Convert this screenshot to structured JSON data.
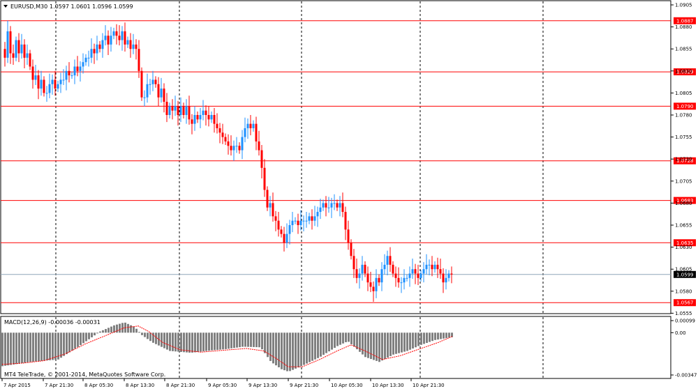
{
  "header": {
    "symbol": "EURUSD,M30",
    "ohlc": "1.0597 1.0601 1.0596 1.0599"
  },
  "macd_header": "MACD(12,26,9) -0.00036 -0.00031",
  "copyright": "MT4 TeleTrade, © 2001-2014, MetaQuotes Software Corp.",
  "colors": {
    "up": "#1e90ff",
    "down": "#ff0000",
    "level": "#ff0000",
    "bid": "#8fa6b8",
    "macd_hist": "#808080",
    "signal": "#ff0000"
  },
  "chart_data": [
    {
      "type": "candlestick",
      "title": "EURUSD,M30",
      "yticks": [
        "1.0905",
        "1.0880",
        "1.0855",
        "1.0830",
        "1.0805",
        "1.0780",
        "1.0755",
        "1.0730",
        "1.0705",
        "1.0680",
        "1.0655",
        "1.0630",
        "1.0605",
        "1.0580",
        "1.0555"
      ],
      "xticks": [
        "7 Apr 2015",
        "7 Apr 21:30",
        "8 Apr 05:30",
        "8 Apr 13:30",
        "8 Apr 21:30",
        "9 Apr 05:30",
        "9 Apr 13:30",
        "9 Apr 21:30",
        "10 Apr 05:30",
        "10 Apr 13:30",
        "10 Apr 21:30"
      ],
      "ylim": [
        1.0544,
        1.0911
      ],
      "grid": "vertical dashed",
      "levels": [
        1.0887,
        1.0829,
        1.079,
        1.0728,
        1.0683,
        1.0635,
        1.0567
      ],
      "level_labels": [
        "1.0887",
        "1.0829",
        "1.0790",
        "1.0728",
        "1.0683",
        "1.0635",
        "1.0567"
      ],
      "current_price": 1.0599,
      "current_price_label": "1.0599",
      "close_path": [
        [
          0,
          1.0855
        ],
        [
          4,
          1.0845
        ],
        [
          8,
          1.0875
        ],
        [
          12,
          1.085
        ],
        [
          16,
          1.0845
        ],
        [
          20,
          1.0865
        ],
        [
          24,
          1.085
        ],
        [
          28,
          1.086
        ],
        [
          32,
          1.0845
        ],
        [
          36,
          1.085
        ],
        [
          40,
          1.0835
        ],
        [
          44,
          1.082
        ],
        [
          48,
          1.0825
        ],
        [
          52,
          1.081
        ],
        [
          56,
          1.082
        ],
        [
          60,
          1.0805
        ],
        [
          64,
          1.0805
        ],
        [
          68,
          1.0815
        ],
        [
          72,
          1.082
        ],
        [
          76,
          1.081
        ],
        [
          80,
          1.0815
        ],
        [
          84,
          1.082
        ],
        [
          88,
          1.082
        ],
        [
          92,
          1.083
        ],
        [
          96,
          1.0825
        ],
        [
          100,
          1.0825
        ],
        [
          104,
          1.0835
        ],
        [
          108,
          1.083
        ],
        [
          112,
          1.0835
        ],
        [
          116,
          1.084
        ],
        [
          120,
          1.0845
        ],
        [
          124,
          1.0845
        ],
        [
          128,
          1.0855
        ],
        [
          132,
          1.085
        ],
        [
          136,
          1.086
        ],
        [
          140,
          1.0855
        ],
        [
          144,
          1.0865
        ],
        [
          148,
          1.087
        ],
        [
          152,
          1.086
        ],
        [
          156,
          1.087
        ],
        [
          160,
          1.0875
        ],
        [
          164,
          1.087
        ],
        [
          168,
          1.0865
        ],
        [
          172,
          1.0875
        ],
        [
          176,
          1.086
        ],
        [
          180,
          1.0865
        ],
        [
          184,
          1.0855
        ],
        [
          188,
          1.086
        ],
        [
          192,
          1.0855
        ],
        [
          196,
          1.083
        ],
        [
          200,
          1.08
        ],
        [
          204,
          1.08
        ],
        [
          208,
          1.0815
        ],
        [
          212,
          1.0815
        ],
        [
          216,
          1.082
        ],
        [
          220,
          1.0815
        ],
        [
          224,
          1.08
        ],
        [
          228,
          1.081
        ],
        [
          232,
          1.0795
        ],
        [
          236,
          1.078
        ],
        [
          240,
          1.079
        ],
        [
          244,
          1.0785
        ],
        [
          248,
          1.079
        ],
        [
          252,
          1.078
        ],
        [
          256,
          1.079
        ],
        [
          260,
          1.078
        ],
        [
          264,
          1.079
        ],
        [
          268,
          1.0775
        ],
        [
          272,
          1.077
        ],
        [
          276,
          1.078
        ],
        [
          280,
          1.0775
        ],
        [
          284,
          1.078
        ],
        [
          288,
          1.0785
        ],
        [
          292,
          1.078
        ],
        [
          296,
          1.0775
        ],
        [
          300,
          1.078
        ],
        [
          304,
          1.077
        ],
        [
          308,
          1.0765
        ],
        [
          312,
          1.076
        ],
        [
          316,
          1.0755
        ],
        [
          320,
          1.075
        ],
        [
          324,
          1.0745
        ],
        [
          328,
          1.074
        ],
        [
          332,
          1.0745
        ],
        [
          336,
          1.0745
        ],
        [
          340,
          1.074
        ],
        [
          344,
          1.0755
        ],
        [
          348,
          1.0765
        ],
        [
          352,
          1.077
        ],
        [
          356,
          1.0765
        ],
        [
          360,
          1.077
        ],
        [
          364,
          1.075
        ],
        [
          368,
          1.074
        ],
        [
          372,
          1.072
        ],
        [
          376,
          1.0695
        ],
        [
          380,
          1.0675
        ],
        [
          384,
          1.068
        ],
        [
          388,
          1.0665
        ],
        [
          392,
          1.066
        ],
        [
          396,
          1.065
        ],
        [
          400,
          1.0645
        ],
        [
          404,
          1.0635
        ],
        [
          408,
          1.0645
        ],
        [
          412,
          1.0655
        ],
        [
          416,
          1.066
        ],
        [
          420,
          1.066
        ],
        [
          424,
          1.0655
        ],
        [
          428,
          1.066
        ],
        [
          432,
          1.066
        ],
        [
          436,
          1.066
        ],
        [
          440,
          1.0665
        ],
        [
          444,
          1.066
        ],
        [
          448,
          1.0665
        ],
        [
          452,
          1.067
        ],
        [
          456,
          1.0675
        ],
        [
          460,
          1.068
        ],
        [
          464,
          1.0675
        ],
        [
          468,
          1.0675
        ],
        [
          472,
          1.068
        ],
        [
          476,
          1.068
        ],
        [
          480,
          1.0675
        ],
        [
          484,
          1.068
        ],
        [
          488,
          1.067
        ],
        [
          492,
          1.065
        ],
        [
          496,
          1.0635
        ],
        [
          500,
          1.062
        ],
        [
          504,
          1.0605
        ],
        [
          508,
          1.0595
        ],
        [
          512,
          1.06
        ],
        [
          516,
          1.061
        ],
        [
          520,
          1.06
        ],
        [
          524,
          1.059
        ],
        [
          528,
          1.0585
        ],
        [
          532,
          1.058
        ],
        [
          536,
          1.0595
        ],
        [
          540,
          1.059
        ],
        [
          544,
          1.0605
        ],
        [
          548,
          1.061
        ],
        [
          552,
          1.062
        ],
        [
          556,
          1.061
        ],
        [
          560,
          1.06
        ],
        [
          564,
          1.0595
        ],
        [
          568,
          1.059
        ],
        [
          572,
          1.059
        ],
        [
          576,
          1.0595
        ],
        [
          580,
          1.0595
        ],
        [
          584,
          1.06
        ],
        [
          588,
          1.0605
        ],
        [
          592,
          1.06
        ],
        [
          596,
          1.0595
        ],
        [
          600,
          1.06
        ],
        [
          604,
          1.0605
        ],
        [
          608,
          1.061
        ],
        [
          612,
          1.061
        ],
        [
          616,
          1.0605
        ],
        [
          620,
          1.061
        ],
        [
          624,
          1.0605
        ],
        [
          628,
          1.06
        ],
        [
          632,
          1.059
        ],
        [
          636,
          1.0595
        ],
        [
          640,
          1.06
        ],
        [
          644,
          1.0599
        ]
      ]
    },
    {
      "type": "bar",
      "title": "MACD(12,26,9) -0.00036 -0.00031",
      "yticks": [
        "0.00099",
        "0.00",
        "-0.00347"
      ],
      "ylim": [
        -0.00347,
        0.00099
      ],
      "histogram_path": [
        [
          0,
          -0.00275
        ],
        [
          40,
          -0.0024
        ],
        [
          80,
          -0.0022
        ],
        [
          110,
          -0.0011
        ],
        [
          140,
          0.0001
        ],
        [
          160,
          0.0006
        ],
        [
          175,
          0.00085
        ],
        [
          190,
          0.00045
        ],
        [
          200,
          -0.0002
        ],
        [
          215,
          -0.0008
        ],
        [
          240,
          -0.0015
        ],
        [
          270,
          -0.00165
        ],
        [
          300,
          -0.00145
        ],
        [
          320,
          -0.00135
        ],
        [
          345,
          -0.00115
        ],
        [
          370,
          -0.0012
        ],
        [
          385,
          -0.0024
        ],
        [
          400,
          -0.003
        ],
        [
          410,
          -0.0032
        ],
        [
          430,
          -0.0027
        ],
        [
          455,
          -0.002
        ],
        [
          480,
          -0.0011
        ],
        [
          495,
          -0.0007
        ],
        [
          505,
          -0.0012
        ],
        [
          520,
          -0.002
        ],
        [
          540,
          -0.0024
        ],
        [
          560,
          -0.0018
        ],
        [
          580,
          -0.0015
        ],
        [
          600,
          -0.001
        ],
        [
          620,
          -0.0006
        ],
        [
          645,
          -0.00036
        ]
      ],
      "signal_path": [
        [
          0,
          -0.0026
        ],
        [
          30,
          -0.0025
        ],
        [
          60,
          -0.0023
        ],
        [
          90,
          -0.00175
        ],
        [
          120,
          -0.0009
        ],
        [
          150,
          -0.0002
        ],
        [
          175,
          0.0004
        ],
        [
          195,
          0.00055
        ],
        [
          210,
          0.0001
        ],
        [
          230,
          -0.0008
        ],
        [
          255,
          -0.0014
        ],
        [
          285,
          -0.0016
        ],
        [
          315,
          -0.00145
        ],
        [
          350,
          -0.0013
        ],
        [
          375,
          -0.0015
        ],
        [
          395,
          -0.0022
        ],
        [
          410,
          -0.0028
        ],
        [
          430,
          -0.0028
        ],
        [
          455,
          -0.0022
        ],
        [
          480,
          -0.0015
        ],
        [
          500,
          -0.001
        ],
        [
          520,
          -0.0015
        ],
        [
          545,
          -0.0022
        ],
        [
          570,
          -0.0019
        ],
        [
          600,
          -0.0013
        ],
        [
          625,
          -0.0008
        ],
        [
          645,
          -0.00031
        ]
      ]
    }
  ]
}
